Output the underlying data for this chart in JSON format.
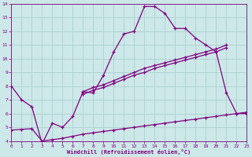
{
  "xlabel": "Windchill (Refroidissement éolien,°C)",
  "xlim": [
    0,
    23
  ],
  "ylim": [
    4,
    14
  ],
  "xticks": [
    0,
    1,
    2,
    3,
    4,
    5,
    6,
    7,
    8,
    9,
    10,
    11,
    12,
    13,
    14,
    15,
    16,
    17,
    18,
    19,
    20,
    21,
    22,
    23
  ],
  "yticks": [
    4,
    5,
    6,
    7,
    8,
    9,
    10,
    11,
    12,
    13,
    14
  ],
  "bg_color": "#cce8e8",
  "line_color": "#800080",
  "grid_color": "#a8cccc",
  "line1_x": [
    0,
    1,
    2,
    3,
    4,
    5,
    6,
    7,
    8,
    9,
    10,
    11,
    12,
    13,
    14,
    15,
    16,
    17,
    18,
    19,
    20,
    21,
    22,
    23
  ],
  "line1_y": [
    8.0,
    7.0,
    6.5,
    3.8,
    5.3,
    5.0,
    5.8,
    7.6,
    7.5,
    8.8,
    10.5,
    11.8,
    12.0,
    13.8,
    13.8,
    13.3,
    12.2,
    12.2,
    11.5,
    11.0,
    10.5,
    7.5,
    6.0,
    6.0
  ],
  "line2_x": [
    7,
    8,
    9,
    10,
    11,
    12,
    13,
    14,
    15,
    16,
    17,
    18,
    19,
    20,
    21
  ],
  "line2_y": [
    7.6,
    7.9,
    8.1,
    8.4,
    8.7,
    9.0,
    9.3,
    9.5,
    9.7,
    9.9,
    10.1,
    10.3,
    10.5,
    10.7,
    11.0
  ],
  "line3_x": [
    7,
    8,
    9,
    10,
    11,
    12,
    13,
    14,
    15,
    16,
    17,
    18,
    19,
    20,
    21
  ],
  "line3_y": [
    7.4,
    7.7,
    7.9,
    8.2,
    8.5,
    8.8,
    9.0,
    9.3,
    9.5,
    9.7,
    9.9,
    10.1,
    10.3,
    10.5,
    10.8
  ],
  "line4_x": [
    0,
    1,
    2,
    3,
    4,
    5,
    6,
    7,
    8,
    9,
    10,
    11,
    12,
    13,
    14,
    15,
    16,
    17,
    18,
    19,
    20,
    21,
    22,
    23
  ],
  "line4_y": [
    4.8,
    4.85,
    4.9,
    4.0,
    4.1,
    4.2,
    4.35,
    4.5,
    4.6,
    4.7,
    4.8,
    4.9,
    5.0,
    5.1,
    5.2,
    5.3,
    5.4,
    5.5,
    5.6,
    5.7,
    5.8,
    5.9,
    6.0,
    6.1
  ]
}
